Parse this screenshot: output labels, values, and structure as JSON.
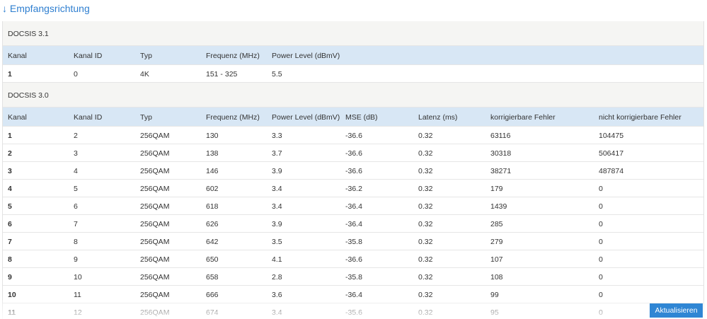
{
  "header": {
    "title": "↓ Empfangsrichtung"
  },
  "sections": [
    {
      "title": "DOCSIS 3.1",
      "columns": [
        "Kanal",
        "Kanal ID",
        "Typ",
        "Frequenz (MHz)",
        "Power Level (dBmV)"
      ],
      "rows": [
        [
          "1",
          "0",
          "4K",
          "151 - 325",
          "5.5"
        ]
      ]
    },
    {
      "title": "DOCSIS 3.0",
      "columns": [
        "Kanal",
        "Kanal ID",
        "Typ",
        "Frequenz (MHz)",
        "Power Level (dBmV)",
        "MSE (dB)",
        "Latenz (ms)",
        "korrigierbare Fehler",
        "nicht korrigierbare Fehler"
      ],
      "rows": [
        [
          "1",
          "2",
          "256QAM",
          "130",
          "3.3",
          "-36.6",
          "0.32",
          "63116",
          "104475"
        ],
        [
          "2",
          "3",
          "256QAM",
          "138",
          "3.7",
          "-36.6",
          "0.32",
          "30318",
          "506417"
        ],
        [
          "3",
          "4",
          "256QAM",
          "146",
          "3.9",
          "-36.6",
          "0.32",
          "38271",
          "487874"
        ],
        [
          "4",
          "5",
          "256QAM",
          "602",
          "3.4",
          "-36.2",
          "0.32",
          "179",
          "0"
        ],
        [
          "5",
          "6",
          "256QAM",
          "618",
          "3.4",
          "-36.4",
          "0.32",
          "1439",
          "0"
        ],
        [
          "6",
          "7",
          "256QAM",
          "626",
          "3.9",
          "-36.4",
          "0.32",
          "285",
          "0"
        ],
        [
          "7",
          "8",
          "256QAM",
          "642",
          "3.5",
          "-35.8",
          "0.32",
          "279",
          "0"
        ],
        [
          "8",
          "9",
          "256QAM",
          "650",
          "4.1",
          "-36.6",
          "0.32",
          "107",
          "0"
        ],
        [
          "9",
          "10",
          "256QAM",
          "658",
          "2.8",
          "-35.8",
          "0.32",
          "108",
          "0"
        ],
        [
          "10",
          "11",
          "256QAM",
          "666",
          "3.6",
          "-36.4",
          "0.32",
          "99",
          "0"
        ],
        [
          "11",
          "12",
          "256QAM",
          "674",
          "3.4",
          "-35.6",
          "0.32",
          "95",
          "0"
        ]
      ]
    }
  ],
  "button": {
    "label": "Aktualisieren"
  }
}
